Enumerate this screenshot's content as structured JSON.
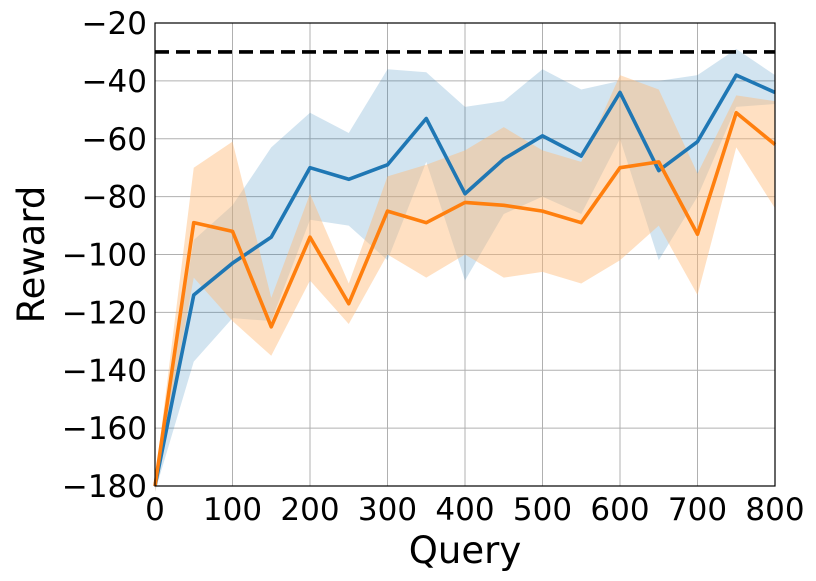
{
  "chart_data": {
    "type": "line",
    "title": "",
    "xlabel": "Query",
    "ylabel": "Reward",
    "xlim": [
      0,
      800
    ],
    "ylim": [
      -180,
      -20
    ],
    "xticks": [
      0,
      100,
      200,
      300,
      400,
      500,
      600,
      700,
      800
    ],
    "yticks": [
      -20,
      -40,
      -60,
      -80,
      -100,
      -120,
      -140,
      -160,
      -180
    ],
    "xtick_labels": [
      "0",
      "100",
      "200",
      "300",
      "400",
      "500",
      "600",
      "700",
      "800"
    ],
    "ytick_labels": [
      "−20",
      "−40",
      "−60",
      "−80",
      "−100",
      "−120",
      "−140",
      "−160",
      "−180"
    ],
    "grid": true,
    "x": [
      0,
      50,
      100,
      150,
      200,
      250,
      300,
      350,
      400,
      450,
      500,
      550,
      600,
      650,
      700,
      750,
      800
    ],
    "series": [
      {
        "name": "blue",
        "color": "#1f77b4",
        "band_color": "#1f77b4",
        "values": [
          -180,
          -114,
          -103,
          -94,
          -70,
          -74,
          -69,
          -53,
          -79,
          -67,
          -59,
          -66,
          -44,
          -71,
          -61,
          -38,
          -44
        ],
        "lower": [
          -182,
          -137,
          -122,
          -123,
          -88,
          -90,
          -102,
          -68,
          -109,
          -86,
          -80,
          -86,
          -60,
          -102,
          -80,
          -49,
          -48
        ],
        "upper": [
          -178,
          -95,
          -83,
          -63,
          -51,
          -58,
          -36,
          -37,
          -49,
          -47,
          -36,
          -43,
          -40,
          -40,
          -38,
          -29,
          -38
        ]
      },
      {
        "name": "orange",
        "color": "#ff7f0e",
        "band_color": "#ffbb78",
        "values": [
          -180,
          -89,
          -92,
          -125,
          -94,
          -117,
          -85,
          -89,
          -82,
          -83,
          -85,
          -89,
          -70,
          -68,
          -93,
          -51,
          -62
        ],
        "lower": [
          -182,
          -108,
          -123,
          -135,
          -109,
          -124,
          -100,
          -108,
          -100,
          -108,
          -106,
          -110,
          -102,
          -90,
          -114,
          -63,
          -84
        ],
        "upper": [
          -178,
          -70,
          -61,
          -115,
          -79,
          -110,
          -73,
          -69,
          -64,
          -56,
          -64,
          -68,
          -38,
          -43,
          -72,
          -45,
          -47
        ]
      }
    ],
    "reference_line": {
      "y": -30,
      "color": "#000000",
      "style": "dashed"
    }
  }
}
